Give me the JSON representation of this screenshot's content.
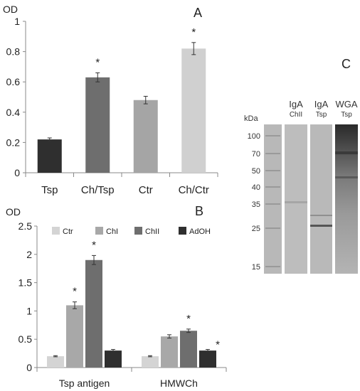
{
  "chart_data": [
    {
      "panel": "A",
      "type": "bar",
      "ylabel": "OD",
      "ylim": [
        0,
        1
      ],
      "yticks": [
        "0",
        "0.2",
        "0.4",
        "0.6",
        "0.8",
        "1"
      ],
      "categories": [
        "Tsp",
        "Ch/Tsp",
        "Ctr",
        "Ch/Ctr"
      ],
      "values": [
        0.22,
        0.63,
        0.48,
        0.82
      ],
      "errors": [
        0.01,
        0.03,
        0.025,
        0.04
      ],
      "significance": [
        "",
        "*",
        "",
        "*"
      ],
      "colors": [
        "#2f2f2f",
        "#6e6e6e",
        "#a5a5a5",
        "#d0d0d0"
      ],
      "grid": false
    },
    {
      "panel": "B",
      "type": "bar",
      "ylabel": "OD",
      "ylim": [
        0,
        2.5
      ],
      "yticks": [
        "0",
        "0.5",
        "1",
        "1.5",
        "2",
        "2.5"
      ],
      "categories": [
        "Tsp antigen",
        "HMWCh"
      ],
      "series": [
        {
          "name": "Ctr",
          "values": [
            0.2,
            0.2
          ],
          "errors": [
            0.01,
            0.01
          ],
          "color": "#d4d4d4",
          "significance": [
            "",
            ""
          ]
        },
        {
          "name": "ChI",
          "values": [
            1.1,
            0.55
          ],
          "errors": [
            0.06,
            0.03
          ],
          "color": "#a8a8a8",
          "significance": [
            "*",
            ""
          ]
        },
        {
          "name": "ChII",
          "values": [
            1.9,
            0.65
          ],
          "errors": [
            0.08,
            0.03
          ],
          "color": "#6e6e6e",
          "significance": [
            "*",
            "*"
          ]
        },
        {
          "name": "AdOH",
          "values": [
            0.3,
            0.3
          ],
          "errors": [
            0.02,
            0.02
          ],
          "color": "#2f2f2f",
          "significance": [
            "",
            "*"
          ]
        }
      ],
      "legend": "top",
      "grid": false
    }
  ],
  "blot": {
    "panel": "C",
    "unit_label": "kDa",
    "markers": [
      "100",
      "70",
      "50",
      "40",
      "35",
      "25",
      "15"
    ],
    "lanes": [
      {
        "line1": "IgA",
        "line2": "ChII"
      },
      {
        "line1": "IgA",
        "line2": "Tsp"
      },
      {
        "line1": "WGA",
        "line2": "Tsp"
      }
    ]
  }
}
